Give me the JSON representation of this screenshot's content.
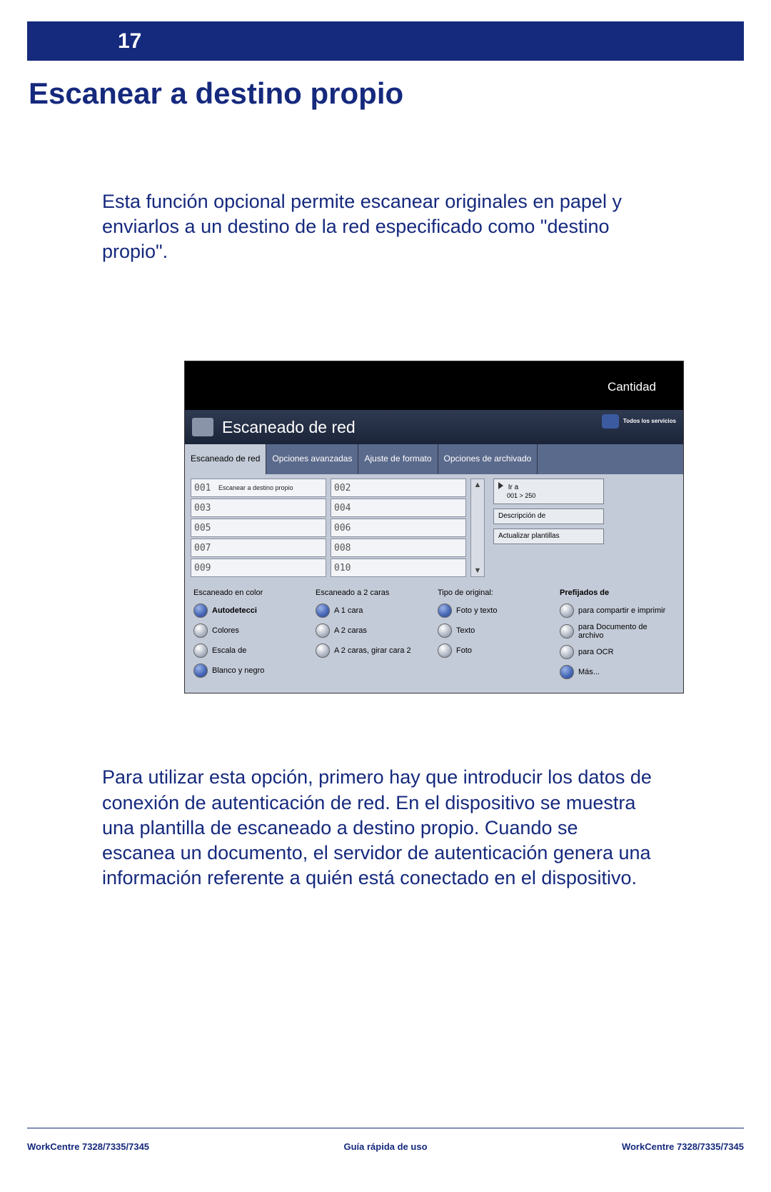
{
  "page_number": "17",
  "title": "Escanear a destino propio",
  "intro": "Esta función opcional permite escanear originales en papel y enviarlos a un destino de la red especificado como \"destino propio\".",
  "outro": "Para utilizar esta opción, primero hay que introducir los datos de conexión de autenticación de red. En el dispositivo se muestra una plantilla de escaneado a destino propio. Cuando se escanea un documento, el servidor de autenticación genera una información referente a quién está conectado en el dispositivo.",
  "device": {
    "quantity_label": "Cantidad",
    "panel_title": "Escaneado de red",
    "all_services": "Todos los servicios",
    "tabs": [
      {
        "label": "Escaneado de red",
        "active": true
      },
      {
        "label": "Opciones avanzadas",
        "active": false
      },
      {
        "label": "Ajuste de formato",
        "active": false
      },
      {
        "label": "Opciones de archivado",
        "active": false
      }
    ],
    "list_left": [
      {
        "num": "001",
        "label": "Escanear a destino propio"
      },
      {
        "num": "003",
        "label": ""
      },
      {
        "num": "005",
        "label": ""
      },
      {
        "num": "007",
        "label": ""
      },
      {
        "num": "009",
        "label": ""
      }
    ],
    "list_right": [
      {
        "num": "002",
        "label": ""
      },
      {
        "num": "004",
        "label": ""
      },
      {
        "num": "006",
        "label": ""
      },
      {
        "num": "008",
        "label": ""
      },
      {
        "num": "010",
        "label": ""
      }
    ],
    "side": {
      "goto": "Ir a",
      "range": "001 > 250",
      "desc": "Descripción de",
      "update": "Actualizar plantillas"
    },
    "option_groups": [
      {
        "header": "Escaneado en color",
        "header_bold": false,
        "items": [
          {
            "label": "Autodetecci",
            "selected": true,
            "bold": true
          },
          {
            "label": "Colores",
            "selected": false
          },
          {
            "label": "Escala de",
            "selected": false
          },
          {
            "label": "Blanco y negro",
            "selected": true
          }
        ]
      },
      {
        "header": "Escaneado a 2 caras",
        "header_bold": false,
        "items": [
          {
            "label": "A 1 cara",
            "selected": true
          },
          {
            "label": "A 2 caras",
            "selected": false
          },
          {
            "label": "A 2 caras, girar cara 2",
            "selected": false
          }
        ]
      },
      {
        "header": "Tipo de original:",
        "header_bold": false,
        "items": [
          {
            "label": "Foto y texto",
            "selected": true
          },
          {
            "label": "Texto",
            "selected": false
          },
          {
            "label": "Foto",
            "selected": false
          }
        ]
      },
      {
        "header": "Prefijados de",
        "header_bold": true,
        "items": [
          {
            "label": "para compartir e imprimir",
            "selected": false
          },
          {
            "label": "para Documento de archivo",
            "selected": false
          },
          {
            "label": "para OCR",
            "selected": false
          },
          {
            "label": "Más...",
            "selected": true
          }
        ]
      }
    ]
  },
  "footer": {
    "left": "WorkCentre 7328/7335/7345",
    "center": "Guía rápida de uso",
    "right": "WorkCentre 7328/7335/7345"
  },
  "colors": {
    "brand": "#15297d",
    "panel_bg": "#c4cbd8",
    "tab_bg": "#5a6a8c",
    "row_bg": "#f3f4f7"
  }
}
